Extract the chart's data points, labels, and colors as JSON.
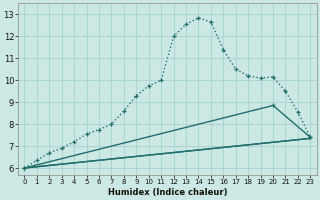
{
  "bg_color": "#cce8e5",
  "grid_color": "#aacfcc",
  "line_color": "#1e7068",
  "xlabel": "Humidex (Indice chaleur)",
  "xlim": [
    -0.5,
    23.5
  ],
  "ylim": [
    5.7,
    13.5
  ],
  "xticks": [
    0,
    1,
    2,
    3,
    4,
    5,
    6,
    7,
    8,
    9,
    10,
    11,
    12,
    13,
    14,
    15,
    16,
    17,
    18,
    19,
    20,
    21,
    22,
    23
  ],
  "yticks": [
    6,
    7,
    8,
    9,
    10,
    11,
    12,
    13
  ],
  "series": [
    {
      "x": [
        0,
        1,
        2,
        3,
        4,
        5,
        6,
        7,
        8,
        9,
        10,
        11,
        12,
        13,
        14,
        15,
        16,
        17,
        18,
        19,
        20,
        21,
        22,
        23
      ],
      "y": [
        6.0,
        6.35,
        6.7,
        6.9,
        7.2,
        7.55,
        7.75,
        8.0,
        8.6,
        9.3,
        9.75,
        10.0,
        12.0,
        12.55,
        12.85,
        12.65,
        11.4,
        10.5,
        10.2,
        10.1,
        10.15,
        9.5,
        8.55,
        7.4
      ],
      "linestyle": ":",
      "marker": true,
      "linewidth": 1.0
    },
    {
      "x": [
        0,
        23
      ],
      "y": [
        6.0,
        7.35
      ],
      "linestyle": "-",
      "marker": false,
      "linewidth": 1.0
    },
    {
      "x": [
        0,
        20,
        23
      ],
      "y": [
        6.0,
        8.85,
        7.4
      ],
      "linestyle": "-",
      "marker": true,
      "linewidth": 1.0
    },
    {
      "x": [
        0,
        23
      ],
      "y": [
        6.0,
        7.35
      ],
      "linestyle": "-",
      "marker": false,
      "linewidth": 1.0
    }
  ]
}
